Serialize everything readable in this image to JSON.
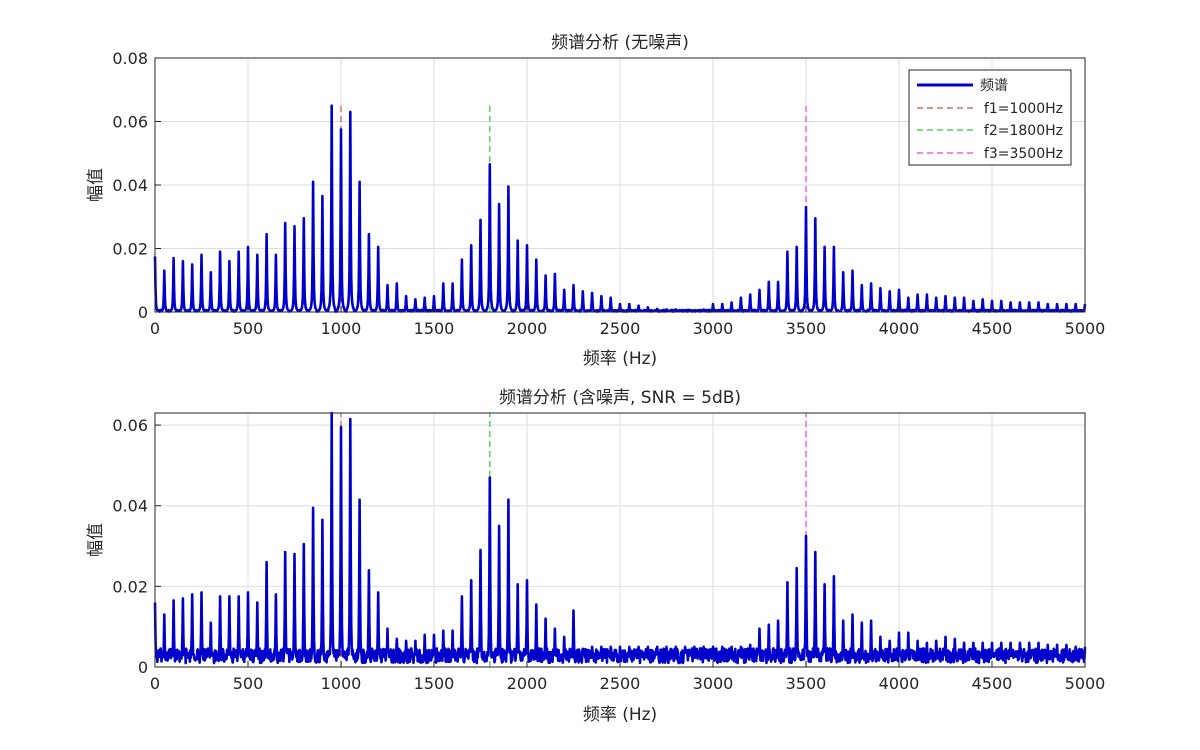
{
  "chart_data": [
    {
      "type": "line",
      "title": "频谱分析 (无噪声)",
      "xlabel": "频率 (Hz)",
      "ylabel": "幅值",
      "xlim": [
        0,
        5000
      ],
      "ylim": [
        0,
        0.08
      ],
      "xticks": [
        "0",
        "500",
        "1000",
        "1500",
        "2000",
        "2500",
        "3000",
        "3500",
        "4000",
        "4500",
        "5000"
      ],
      "yticks": [
        "0",
        "0.02",
        "0.04",
        "0.06",
        "0.08"
      ],
      "grid": true,
      "legend_position": "top-right",
      "series": [
        {
          "name": "频谱",
          "color": "#0000cd",
          "style": "solid"
        },
        {
          "name": "f1=1000Hz",
          "x": 1000,
          "color": "#c0504d",
          "style": "dashed"
        },
        {
          "name": "f2=1800Hz",
          "x": 1800,
          "color": "#33cc33",
          "style": "dashed"
        },
        {
          "name": "f3=3500Hz",
          "x": 3500,
          "color": "#e040e0",
          "style": "dashed"
        }
      ],
      "marker_height": 0.065,
      "noise_floor": 0.0004,
      "peaks": [
        [
          0,
          0.0175
        ],
        [
          50,
          0.013
        ],
        [
          100,
          0.017
        ],
        [
          150,
          0.016
        ],
        [
          200,
          0.015
        ],
        [
          250,
          0.018
        ],
        [
          300,
          0.0125
        ],
        [
          350,
          0.019
        ],
        [
          400,
          0.016
        ],
        [
          450,
          0.019
        ],
        [
          500,
          0.0205
        ],
        [
          550,
          0.018
        ],
        [
          600,
          0.0245
        ],
        [
          650,
          0.018
        ],
        [
          700,
          0.028
        ],
        [
          750,
          0.027
        ],
        [
          800,
          0.0295
        ],
        [
          850,
          0.041
        ],
        [
          900,
          0.0365
        ],
        [
          950,
          0.065
        ],
        [
          1000,
          0.0575
        ],
        [
          1050,
          0.063
        ],
        [
          1100,
          0.041
        ],
        [
          1150,
          0.0245
        ],
        [
          1200,
          0.0205
        ],
        [
          1250,
          0.0085
        ],
        [
          1300,
          0.009
        ],
        [
          1350,
          0.005
        ],
        [
          1400,
          0.004
        ],
        [
          1450,
          0.0045
        ],
        [
          1500,
          0.005
        ],
        [
          1550,
          0.009
        ],
        [
          1600,
          0.009
        ],
        [
          1650,
          0.0165
        ],
        [
          1700,
          0.021
        ],
        [
          1750,
          0.029
        ],
        [
          1800,
          0.0465
        ],
        [
          1850,
          0.034
        ],
        [
          1900,
          0.0395
        ],
        [
          1950,
          0.0225
        ],
        [
          2000,
          0.021
        ],
        [
          2050,
          0.0165
        ],
        [
          2100,
          0.0115
        ],
        [
          2150,
          0.012
        ],
        [
          2200,
          0.007
        ],
        [
          2250,
          0.0085
        ],
        [
          2300,
          0.0065
        ],
        [
          2350,
          0.006
        ],
        [
          2400,
          0.005
        ],
        [
          2450,
          0.0045
        ],
        [
          2500,
          0.0025
        ],
        [
          2550,
          0.0025
        ],
        [
          2600,
          0.002
        ],
        [
          2650,
          0.0015
        ],
        [
          2700,
          0.001
        ],
        [
          2750,
          0.0008
        ],
        [
          2800,
          0.0008
        ],
        [
          2850,
          0.0006
        ],
        [
          2900,
          0.0006
        ],
        [
          2950,
          0.0008
        ],
        [
          3000,
          0.0025
        ],
        [
          3050,
          0.0025
        ],
        [
          3100,
          0.003
        ],
        [
          3150,
          0.0045
        ],
        [
          3200,
          0.0055
        ],
        [
          3250,
          0.007
        ],
        [
          3300,
          0.0095
        ],
        [
          3350,
          0.0095
        ],
        [
          3400,
          0.019
        ],
        [
          3450,
          0.0205
        ],
        [
          3500,
          0.033
        ],
        [
          3550,
          0.0295
        ],
        [
          3600,
          0.0205
        ],
        [
          3650,
          0.0205
        ],
        [
          3700,
          0.0125
        ],
        [
          3750,
          0.013
        ],
        [
          3800,
          0.0085
        ],
        [
          3850,
          0.009
        ],
        [
          3900,
          0.0075
        ],
        [
          3950,
          0.0065
        ],
        [
          4000,
          0.007
        ],
        [
          4050,
          0.0045
        ],
        [
          4100,
          0.0055
        ],
        [
          4150,
          0.0055
        ],
        [
          4200,
          0.0045
        ],
        [
          4250,
          0.005
        ],
        [
          4300,
          0.0045
        ],
        [
          4350,
          0.0045
        ],
        [
          4400,
          0.0035
        ],
        [
          4450,
          0.004
        ],
        [
          4500,
          0.0035
        ],
        [
          4550,
          0.0035
        ],
        [
          4600,
          0.003
        ],
        [
          4650,
          0.003
        ],
        [
          4700,
          0.003
        ],
        [
          4750,
          0.003
        ],
        [
          4800,
          0.0025
        ],
        [
          4850,
          0.0025
        ],
        [
          4900,
          0.0025
        ],
        [
          4950,
          0.0025
        ],
        [
          5000,
          0.0025
        ]
      ]
    },
    {
      "type": "line",
      "title": "频谱分析 (含噪声, SNR = 5dB)",
      "xlabel": "频率 (Hz)",
      "ylabel": "幅值",
      "xlim": [
        0,
        5000
      ],
      "ylim": [
        0,
        0.063
      ],
      "xticks": [
        "0",
        "500",
        "1000",
        "1500",
        "2000",
        "2500",
        "3000",
        "3500",
        "4000",
        "4500",
        "5000"
      ],
      "yticks": [
        "0",
        "0.02",
        "0.04",
        "0.06"
      ],
      "grid": true,
      "series": [
        {
          "name": "频谱",
          "color": "#0000cd",
          "style": "solid"
        },
        {
          "name": "f1=1000Hz",
          "x": 1000,
          "color": "#c0504d",
          "style": "dashed"
        },
        {
          "name": "f2=1800Hz",
          "x": 1800,
          "color": "#33cc33",
          "style": "dashed"
        },
        {
          "name": "f3=3500Hz",
          "x": 3500,
          "color": "#e040e0",
          "style": "dashed"
        }
      ],
      "marker_height": 0.063,
      "noise_floor": 0.0028,
      "peaks": [
        [
          0,
          0.016
        ],
        [
          50,
          0.013
        ],
        [
          100,
          0.0165
        ],
        [
          150,
          0.017
        ],
        [
          200,
          0.018
        ],
        [
          250,
          0.0185
        ],
        [
          300,
          0.011
        ],
        [
          350,
          0.0175
        ],
        [
          400,
          0.0175
        ],
        [
          450,
          0.0175
        ],
        [
          500,
          0.0185
        ],
        [
          550,
          0.016
        ],
        [
          600,
          0.026
        ],
        [
          650,
          0.018
        ],
        [
          700,
          0.0285
        ],
        [
          750,
          0.028
        ],
        [
          800,
          0.0305
        ],
        [
          850,
          0.0395
        ],
        [
          900,
          0.0365
        ],
        [
          950,
          0.063
        ],
        [
          1000,
          0.0595
        ],
        [
          1050,
          0.0615
        ],
        [
          1100,
          0.0415
        ],
        [
          1150,
          0.024
        ],
        [
          1200,
          0.0185
        ],
        [
          1250,
          0.0095
        ],
        [
          1300,
          0.007
        ],
        [
          1350,
          0.0065
        ],
        [
          1400,
          0.0065
        ],
        [
          1450,
          0.008
        ],
        [
          1500,
          0.008
        ],
        [
          1550,
          0.009
        ],
        [
          1600,
          0.009
        ],
        [
          1650,
          0.0175
        ],
        [
          1700,
          0.0215
        ],
        [
          1750,
          0.029
        ],
        [
          1800,
          0.047
        ],
        [
          1850,
          0.035
        ],
        [
          1900,
          0.0415
        ],
        [
          1950,
          0.0205
        ],
        [
          2000,
          0.0215
        ],
        [
          2050,
          0.0155
        ],
        [
          2100,
          0.012
        ],
        [
          2150,
          0.0095
        ],
        [
          2200,
          0.0075
        ],
        [
          2250,
          0.014
        ],
        [
          2300,
          0.0045
        ],
        [
          2350,
          0.005
        ],
        [
          2400,
          0.005
        ],
        [
          2450,
          0.005
        ],
        [
          2500,
          0.005
        ],
        [
          2550,
          0.005
        ],
        [
          2600,
          0.005
        ],
        [
          2650,
          0.005
        ],
        [
          2700,
          0.005
        ],
        [
          2750,
          0.005
        ],
        [
          2800,
          0.005
        ],
        [
          2850,
          0.005
        ],
        [
          2900,
          0.005
        ],
        [
          2950,
          0.005
        ],
        [
          3000,
          0.005
        ],
        [
          3050,
          0.005
        ],
        [
          3100,
          0.005
        ],
        [
          3150,
          0.005
        ],
        [
          3200,
          0.0055
        ],
        [
          3250,
          0.0095
        ],
        [
          3300,
          0.0105
        ],
        [
          3350,
          0.0115
        ],
        [
          3400,
          0.021
        ],
        [
          3450,
          0.0245
        ],
        [
          3500,
          0.0325
        ],
        [
          3550,
          0.0285
        ],
        [
          3600,
          0.0205
        ],
        [
          3650,
          0.0225
        ],
        [
          3700,
          0.0115
        ],
        [
          3750,
          0.013
        ],
        [
          3800,
          0.011
        ],
        [
          3850,
          0.0115
        ],
        [
          3900,
          0.0075
        ],
        [
          3950,
          0.0065
        ],
        [
          4000,
          0.0085
        ],
        [
          4050,
          0.0085
        ],
        [
          4100,
          0.0065
        ],
        [
          4150,
          0.006
        ],
        [
          4200,
          0.0065
        ],
        [
          4250,
          0.0075
        ],
        [
          4300,
          0.007
        ],
        [
          4350,
          0.006
        ],
        [
          4400,
          0.006
        ],
        [
          4450,
          0.006
        ],
        [
          4500,
          0.006
        ],
        [
          4550,
          0.006
        ],
        [
          4600,
          0.006
        ],
        [
          4650,
          0.006
        ],
        [
          4700,
          0.006
        ],
        [
          4750,
          0.006
        ],
        [
          4800,
          0.0055
        ],
        [
          4850,
          0.0055
        ],
        [
          4900,
          0.0055
        ],
        [
          4950,
          0.005
        ],
        [
          5000,
          0.005
        ]
      ]
    }
  ]
}
